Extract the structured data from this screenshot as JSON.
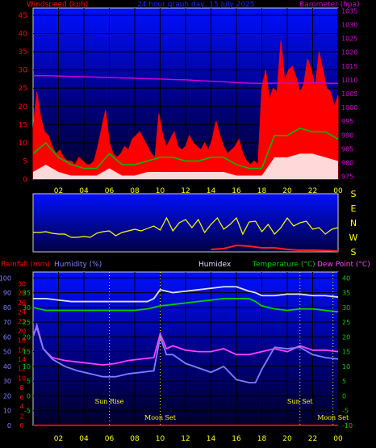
{
  "colors": {
    "background": "#000000",
    "plot_bg_top": "#0000ff",
    "plot_bg_bottom": "#000030",
    "frame": "#cfcfcf",
    "windspeed": "#ff0000",
    "gust_fill": "#ff0000",
    "avg_wind": "#00c000",
    "wind_low": "#ffffff",
    "barometer": "#d000d0",
    "title": "#2020ff",
    "direction": "#ffff00",
    "direction_low": "#ff2020",
    "yellow_text": "#ffff00",
    "rain": "#ff0000",
    "humidity": "#8080ff",
    "humidex": "#e0e0ff",
    "temperature": "#00d000",
    "dewpoint": "#ff40ff",
    "event_text": "#ffff00"
  },
  "chart_data": [
    {
      "type": "line",
      "panel": "wind",
      "title": "24 hour graph day, 15 July 2025",
      "left_label": "Windspeed (kph)",
      "right_label": "Barometer (hpa)",
      "x_ticks": [
        "02",
        "04",
        "06",
        "08",
        "10",
        "12",
        "14",
        "16",
        "18",
        "20",
        "22",
        "00"
      ],
      "left_ticks": [
        "0",
        "5",
        "10",
        "15",
        "20",
        "25",
        "30",
        "35",
        "40",
        "45"
      ],
      "right_ticks": [
        "975",
        "980",
        "985",
        "990",
        "995",
        "1000",
        "1005",
        "1010",
        "1015",
        "1020",
        "1025",
        "1030",
        "1035"
      ],
      "xlim": [
        0,
        24
      ],
      "ylim": [
        0,
        47
      ],
      "y2lim": [
        974,
        1036
      ],
      "series": [
        {
          "key": "gust",
          "style": "area",
          "x": [
            0,
            0.3,
            0.6,
            0.9,
            1.2,
            1.5,
            1.8,
            2.1,
            2.4,
            2.7,
            3,
            3.3,
            3.6,
            3.9,
            4.2,
            4.5,
            4.8,
            5.1,
            5.4,
            5.7,
            6,
            6.3,
            6.6,
            6.9,
            7.2,
            7.5,
            7.8,
            8.1,
            8.4,
            8.7,
            9,
            9.3,
            9.6,
            9.9,
            10.2,
            10.5,
            10.8,
            11.1,
            11.4,
            11.7,
            12,
            12.3,
            12.6,
            12.9,
            13.2,
            13.5,
            13.8,
            14.1,
            14.4,
            14.7,
            15,
            15.3,
            15.6,
            15.9,
            16.2,
            16.5,
            16.8,
            17.1,
            17.4,
            17.7,
            18,
            18.3,
            18.6,
            18.9,
            19.2,
            19.5,
            19.8,
            20.1,
            20.4,
            20.7,
            21,
            21.3,
            21.6,
            21.9,
            22.2,
            22.5,
            22.8,
            23.1,
            23.4,
            23.7,
            24
          ],
          "values": [
            14,
            24,
            17,
            13,
            12,
            9,
            7,
            8,
            6,
            5,
            5,
            4,
            6,
            5,
            4,
            4,
            5,
            9,
            14,
            19,
            10,
            7,
            6,
            7,
            9,
            8,
            11,
            12,
            13,
            11,
            9,
            7,
            6,
            18,
            12,
            9,
            11,
            13,
            9,
            8,
            9,
            12,
            10,
            9,
            8,
            10,
            8,
            11,
            16,
            12,
            9,
            7,
            8,
            9,
            11,
            7,
            5,
            4,
            5,
            4,
            25,
            30,
            22,
            25,
            24,
            38,
            27,
            30,
            31,
            28,
            24,
            26,
            33,
            30,
            25,
            35,
            30,
            25,
            24,
            20,
            23
          ]
        },
        {
          "key": "avg",
          "style": "line",
          "x": [
            0,
            1,
            2,
            3,
            4,
            5,
            6,
            7,
            8,
            9,
            10,
            11,
            12,
            13,
            14,
            15,
            16,
            17,
            18,
            19,
            20,
            21,
            22,
            23,
            24
          ],
          "values": [
            7,
            10,
            6,
            4,
            3,
            3,
            7,
            4,
            4,
            5,
            6,
            6,
            5,
            5,
            6,
            6,
            4,
            3,
            3,
            12,
            12,
            14,
            13,
            13,
            11
          ]
        },
        {
          "key": "low",
          "style": "area",
          "x": [
            0,
            1,
            2,
            3,
            4,
            5,
            6,
            7,
            8,
            9,
            10,
            11,
            12,
            13,
            14,
            15,
            16,
            17,
            18,
            19,
            20,
            21,
            22,
            23,
            24
          ],
          "values": [
            2,
            4,
            2,
            1,
            1,
            1,
            3,
            1,
            1,
            2,
            2,
            2,
            2,
            2,
            2,
            2,
            1,
            1,
            1,
            6,
            6,
            7,
            7,
            6,
            5
          ]
        },
        {
          "key": "barometer",
          "style": "line",
          "axis": "y2",
          "x": [
            0,
            1,
            2,
            3,
            4,
            5,
            6,
            7,
            8,
            9,
            10,
            11,
            12,
            13,
            14,
            15,
            16,
            17,
            18,
            19,
            20,
            21,
            22,
            23,
            24
          ],
          "values": [
            1011.5,
            1011.5,
            1011.4,
            1011.2,
            1011.1,
            1011.0,
            1010.8,
            1010.7,
            1010.6,
            1010.4,
            1010.3,
            1010.1,
            1010.0,
            1009.7,
            1009.5,
            1009.3,
            1009.0,
            1008.8,
            1008.7,
            1008.8,
            1008.8,
            1008.8,
            1008.9,
            1008.8,
            1008.7
          ]
        }
      ]
    },
    {
      "type": "scatter",
      "panel": "direction",
      "right_labels": [
        "S",
        "E",
        "N",
        "W",
        "S"
      ],
      "xlim": [
        0,
        24
      ],
      "ylim": [
        0,
        360
      ],
      "series": [
        {
          "key": "direction",
          "x": [
            0,
            0.5,
            1,
            1.5,
            2,
            2.5,
            3,
            3.5,
            4,
            4.5,
            5,
            5.5,
            6,
            6.5,
            7,
            7.5,
            8,
            8.5,
            9,
            9.5,
            10,
            10.5,
            11,
            11.5,
            12,
            12.5,
            13,
            13.5,
            14,
            14.5,
            15,
            15.5,
            16,
            16.5,
            17,
            17.5,
            18,
            18.5,
            19,
            19.5,
            20,
            20.5,
            21,
            21.5,
            22,
            22.5,
            23,
            23.5,
            24
          ],
          "values": [
            120,
            120,
            125,
            115,
            110,
            110,
            90,
            90,
            95,
            90,
            115,
            125,
            130,
            100,
            120,
            130,
            140,
            130,
            145,
            160,
            135,
            210,
            130,
            180,
            200,
            150,
            200,
            120,
            170,
            210,
            140,
            170,
            210,
            110,
            185,
            190,
            125,
            170,
            110,
            150,
            210,
            160,
            180,
            190,
            140,
            150,
            110,
            140,
            150
          ]
        },
        {
          "key": "low_speed",
          "x": [
            14,
            15,
            16,
            17,
            18,
            19,
            20,
            21,
            22,
            23,
            24
          ],
          "values": [
            15,
            20,
            40,
            35,
            25,
            25,
            15,
            10,
            10,
            8,
            5
          ]
        }
      ]
    },
    {
      "type": "line",
      "panel": "temperature",
      "labels": {
        "rainfall": "Rainfall (mm)",
        "humidity": "Humidity (%)",
        "humidex": "Humidex",
        "temperature": "Temperature (°C)",
        "dewpoint": "Dew Point (°C)"
      },
      "x_ticks": [
        "02",
        "04",
        "06",
        "08",
        "10",
        "12",
        "14",
        "16",
        "18",
        "20",
        "22",
        "00"
      ],
      "humidity_ticks": [
        "0",
        "10",
        "20",
        "30",
        "40",
        "50",
        "60",
        "70",
        "80",
        "90",
        "100"
      ],
      "rain_ticks": [
        "0",
        "2",
        "4",
        "6",
        "8",
        "10",
        "12",
        "14",
        "16",
        "18",
        "20",
        "22",
        "24",
        "26",
        "28",
        "30"
      ],
      "temp_left_ticks": [
        "-5",
        "0",
        "5",
        "10",
        "15",
        "20",
        "25",
        "30",
        "35"
      ],
      "temp_right_ticks": [
        "-10",
        "-5",
        "0",
        "5",
        "10",
        "15",
        "20",
        "25",
        "30",
        "35",
        "40"
      ],
      "xlim": [
        0,
        24
      ],
      "humidity_lim": [
        0,
        104
      ],
      "temp_lim": [
        -10,
        42
      ],
      "events": [
        {
          "label": "Sun Rise",
          "x": 6.0,
          "row": 1
        },
        {
          "label": "Moon Set",
          "x": 10.0,
          "row": 2
        },
        {
          "label": "Sun Set",
          "x": 21.0,
          "row": 1
        },
        {
          "label": "Moon Set",
          "x": 23.6,
          "row": 2
        }
      ],
      "series": [
        {
          "key": "humidex",
          "axis": "temp",
          "x": [
            0,
            1,
            2,
            3,
            4,
            5,
            6,
            7,
            8,
            9,
            9.5,
            10,
            11,
            12,
            13,
            14,
            15,
            16,
            17,
            17.5,
            18,
            19,
            20,
            21,
            22,
            23,
            24
          ],
          "values": [
            33,
            33,
            32.5,
            32,
            32,
            32,
            32,
            32,
            32,
            32,
            33,
            36,
            35,
            35.5,
            36,
            36.5,
            37,
            37,
            35.5,
            35,
            34,
            34,
            34.5,
            34.5,
            34,
            34,
            33.5
          ]
        },
        {
          "key": "temperature",
          "axis": "temp",
          "x": [
            0,
            1,
            2,
            3,
            4,
            5,
            6,
            7,
            8,
            9,
            10,
            11,
            12,
            13,
            14,
            15,
            16,
            17,
            17.5,
            18,
            19,
            20,
            21,
            22,
            23,
            24
          ],
          "values": [
            30,
            29,
            29,
            29,
            29,
            29,
            29,
            29,
            29,
            29.5,
            30.5,
            31,
            31.5,
            32,
            32.5,
            33,
            33,
            33,
            32,
            30.5,
            29.5,
            29,
            29.5,
            29.5,
            29,
            28.5
          ]
        },
        {
          "key": "dewpoint",
          "axis": "temp",
          "x": [
            0,
            0.3,
            0.8,
            1.5,
            2.5,
            3.5,
            4.5,
            5.5,
            6.5,
            7.5,
            8.5,
            9.5,
            10,
            10.5,
            11,
            12,
            13,
            14,
            15,
            16,
            17,
            18,
            19,
            20,
            21,
            22,
            23,
            24
          ],
          "values": [
            21,
            23,
            16,
            13,
            12,
            11.5,
            11,
            10.5,
            11,
            12,
            12.5,
            13,
            21,
            16,
            17,
            15.5,
            15,
            15,
            16,
            14,
            14,
            15,
            16,
            15,
            17,
            15.5,
            15.5,
            15
          ]
        },
        {
          "key": "humidity",
          "axis": "humidity",
          "x": [
            0,
            0.3,
            0.8,
            1.5,
            2.5,
            3.5,
            4.5,
            5.5,
            6.5,
            7.5,
            8.5,
            9.5,
            10,
            10.5,
            11,
            12,
            13,
            14,
            15,
            16,
            17,
            17.5,
            18,
            19,
            20,
            21,
            22,
            23,
            24
          ],
          "values": [
            60,
            68,
            52,
            45,
            40,
            37,
            35,
            33,
            33,
            35,
            36,
            37,
            60,
            48,
            48,
            42,
            39,
            36,
            40,
            31,
            29,
            29,
            38,
            53,
            52,
            53,
            48,
            46,
            45
          ]
        },
        {
          "key": "rain",
          "axis": "humidity",
          "x": [
            0,
            24
          ],
          "values": [
            0,
            0
          ]
        }
      ]
    }
  ]
}
